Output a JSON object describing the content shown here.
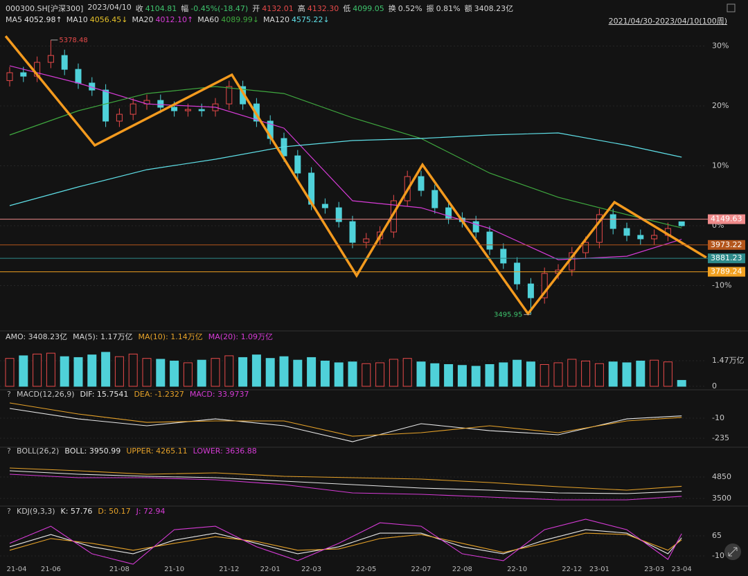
{
  "header": {
    "symbol": "000300.SH[沪深300]",
    "date": "2023/04/10",
    "help_icon": "?",
    "fields": [
      {
        "label": "收",
        "value": "4104.81",
        "color": "#3ec46d"
      },
      {
        "label": "幅",
        "value": "-0.45%(-18.47)",
        "color": "#3ec46d"
      },
      {
        "label": "开",
        "value": "4132.01",
        "color": "#e84a4a"
      },
      {
        "label": "高",
        "value": "4132.30",
        "color": "#e84a4a"
      },
      {
        "label": "低",
        "value": "4099.05",
        "color": "#3ec46d"
      },
      {
        "label": "换",
        "value": "0.52%",
        "color": "#d8d8d8"
      },
      {
        "label": "振",
        "value": "0.81%",
        "color": "#d8d8d8"
      },
      {
        "label": "额",
        "value": "3408.23亿",
        "color": "#d8d8d8"
      }
    ],
    "range": "2021/04/30-2023/04/10(100周)",
    "ma_legend": [
      {
        "name": "MA5",
        "value": "4052.98↑",
        "color": "#e8e8e8"
      },
      {
        "name": "MA10",
        "value": "4056.45↓",
        "color": "#e6c229"
      },
      {
        "name": "MA20",
        "value": "4012.10↑",
        "color": "#d63bd6"
      },
      {
        "name": "MA60",
        "value": "4089.99↓",
        "color": "#3fa83f"
      },
      {
        "name": "MA120",
        "value": "4575.22↓",
        "color": "#5fe0e8"
      }
    ]
  },
  "chart_data": [
    {
      "type": "candlestick",
      "categories": [
        "21-04",
        null,
        null,
        "21-06",
        null,
        null,
        null,
        null,
        "21-08",
        null,
        null,
        null,
        "21-10",
        null,
        null,
        null,
        "21-12",
        null,
        null,
        "22-01",
        null,
        null,
        "22-03",
        null,
        null,
        null,
        "22-05",
        null,
        null,
        null,
        "22-07",
        null,
        null,
        "22-08",
        null,
        null,
        null,
        "22-10",
        null,
        null,
        null,
        "22-12",
        null,
        "23-01",
        null,
        null,
        null,
        "23-03",
        null,
        "23-04"
      ],
      "open": [
        5100,
        5154,
        5130,
        5225,
        5272,
        5177,
        5083,
        5035,
        4822,
        4869,
        4940,
        4964,
        4917,
        4893,
        4902,
        4893,
        4940,
        5059,
        4940,
        4822,
        4703,
        4584,
        4466,
        4252,
        4228,
        4133,
        3991,
        4015,
        4062,
        4276,
        4442,
        4347,
        4228,
        4157,
        4133,
        4062,
        3944,
        3849,
        3706,
        3611,
        3778,
        3801,
        3920,
        3991,
        4181,
        4086,
        4039,
        4015,
        4039,
        4132
      ],
      "high": [
        5194,
        5194,
        5265,
        5378,
        5312,
        5217,
        5123,
        5075,
        4909,
        4980,
        5004,
        5004,
        4957,
        4942,
        4942,
        4980,
        5099,
        5099,
        4980,
        4862,
        4743,
        4624,
        4506,
        4292,
        4268,
        4173,
        4055,
        4102,
        4316,
        4482,
        4482,
        4387,
        4268,
        4197,
        4173,
        4102,
        3984,
        3889,
        3746,
        3818,
        3841,
        3960,
        4031,
        4221,
        4221,
        4126,
        4079,
        4079,
        4126,
        4132
      ],
      "low": [
        5060,
        5090,
        5090,
        5185,
        5137,
        5043,
        4995,
        4782,
        4782,
        4829,
        4900,
        4877,
        4853,
        4853,
        4853,
        4853,
        4900,
        4900,
        4782,
        4663,
        4544,
        4426,
        4212,
        4188,
        4093,
        3951,
        3951,
        3975,
        4022,
        4236,
        4307,
        4188,
        4117,
        4093,
        4022,
        3904,
        3809,
        3666,
        3496,
        3571,
        3738,
        3761,
        3880,
        3951,
        4046,
        3999,
        3975,
        3975,
        3999,
        4099
      ],
      "close": [
        5154,
        5130,
        5225,
        5272,
        5177,
        5083,
        5035,
        4822,
        4869,
        4940,
        4964,
        4917,
        4893,
        4902,
        4893,
        4940,
        5059,
        4940,
        4822,
        4703,
        4584,
        4466,
        4252,
        4228,
        4133,
        3991,
        4015,
        4062,
        4276,
        4442,
        4347,
        4228,
        4157,
        4133,
        4062,
        3944,
        3849,
        3706,
        3611,
        3778,
        3801,
        3920,
        3991,
        4181,
        4086,
        4039,
        4015,
        4039,
        4086,
        4105
      ],
      "up_color": "#e84a4a",
      "down_color": "#4fd1d9",
      "ylim": [
        3398,
        5510
      ],
      "yticks": [
        {
          "value": 5336.5,
          "label": "30%"
        },
        {
          "value": 4926,
          "label": "20%"
        },
        {
          "value": 4515.5,
          "label": "10%"
        },
        {
          "value": 4105,
          "label": "0%"
        },
        {
          "value": 3694.5,
          "label": "-10%"
        }
      ],
      "grid": true,
      "series": [
        {
          "color": "#d63bd6",
          "x": [
            0,
            5,
            10,
            15,
            20,
            25,
            30,
            35,
            40,
            45,
            49
          ],
          "values": [
            5201,
            5083,
            4940,
            4917,
            4774,
            4276,
            4228,
            4086,
            3872,
            3896,
            4012
          ]
        },
        {
          "color": "#3fa83f",
          "x": [
            0,
            5,
            10,
            15,
            20,
            25,
            30,
            35,
            40,
            45,
            49
          ],
          "values": [
            4727,
            4893,
            5011,
            5059,
            5011,
            4845,
            4703,
            4466,
            4300,
            4181,
            4090
          ]
        },
        {
          "color": "#5fe0e8",
          "x": [
            0,
            5,
            10,
            15,
            20,
            25,
            30,
            35,
            40,
            45,
            49
          ],
          "values": [
            4243,
            4371,
            4489,
            4561,
            4646,
            4689,
            4703,
            4727,
            4741,
            4656,
            4575
          ]
        }
      ],
      "trendline": {
        "color": "#f39a1e",
        "x": [
          -0.3,
          6.2,
          16.2,
          25.3,
          30.1,
          37.8,
          44.1,
          50.8
        ],
        "values": [
          5405,
          4656,
          5140,
          3763,
          4523,
          3502,
          4266,
          3887
        ]
      },
      "levels": [
        {
          "value": 4149.63,
          "color": "#ee8a8a"
        },
        {
          "value": 3973.22,
          "color": "#b4561c"
        },
        {
          "value": 3881.23,
          "color": "#2e8b8b"
        },
        {
          "value": 3789.24,
          "color": "#f0a020"
        }
      ],
      "annotations": [
        {
          "text": "5378.48",
          "color": "#e84a4a"
        },
        {
          "text": "3495.95",
          "color": "#3ec46d"
        }
      ]
    },
    {
      "type": "bar",
      "legend": [
        {
          "text": "AMO: 3408.23亿",
          "color": "#d8d8d8"
        },
        {
          "text": "MA(5): 1.17万亿",
          "color": "#d8d8d8"
        },
        {
          "text": "MA(10): 1.14万亿",
          "color": "#e6a229"
        },
        {
          "text": "MA(20): 1.09万亿",
          "color": "#d63bd6"
        }
      ],
      "values": [
        16000,
        17500,
        18500,
        19000,
        17000,
        16500,
        18000,
        19500,
        17000,
        18500,
        16000,
        15500,
        14500,
        13500,
        15000,
        16000,
        17500,
        16500,
        18000,
        16000,
        17000,
        15000,
        16500,
        14500,
        13500,
        14000,
        13000,
        13500,
        15500,
        16000,
        14000,
        13000,
        12500,
        12000,
        11500,
        12500,
        13500,
        15000,
        14000,
        12500,
        13500,
        15500,
        14500,
        13000,
        14000,
        13500,
        14500,
        15000,
        14000,
        3408.23
      ],
      "ylim": [
        0,
        25800
      ],
      "yticks": [
        {
          "value": 14700,
          "label": "1.47万亿"
        },
        0
      ]
    },
    {
      "type": "line",
      "title": "MACD(12,26,9)",
      "series": [
        {
          "name": "DIF: 15.7541",
          "color": "#e8e8e8",
          "x": [
            0,
            5,
            10,
            15,
            20,
            25,
            30,
            35,
            40,
            45,
            49
          ],
          "values": [
            99,
            -18,
            -95,
            -18,
            -95,
            -274,
            -72,
            -150,
            -196,
            -18,
            15.7541
          ]
        },
        {
          "name": "DEA: -1.2327",
          "color": "#e6a229",
          "x": [
            0,
            5,
            10,
            15,
            20,
            25,
            30,
            35,
            40,
            45,
            49
          ],
          "values": [
            161,
            37,
            -57,
            -41,
            -41,
            -212,
            -173,
            -95,
            -173,
            -41,
            -1.2327
          ]
        },
        {
          "name": "MACD: 33.9737",
          "color": "#d63bd6",
          "x": [],
          "values": []
        }
      ],
      "ylim": [
        -328,
        254
      ],
      "yticks": [
        -10,
        -235
      ]
    },
    {
      "type": "line",
      "title": "BOLL(26,2)",
      "series": [
        {
          "name": "BOLL: 3950.99",
          "color": "#e8e8e8",
          "x": [
            0,
            5,
            10,
            15,
            20,
            25,
            30,
            35,
            40,
            45,
            49
          ],
          "values": [
            5242,
            5024,
            4894,
            4807,
            4589,
            4372,
            4154,
            4024,
            3850,
            3806,
            3950.99
          ]
        },
        {
          "name": "UPPER: 4265.11",
          "color": "#e6a229",
          "x": [
            0,
            5,
            10,
            15,
            20,
            25,
            30,
            35,
            40,
            45,
            49
          ],
          "values": [
            5416,
            5242,
            5024,
            5111,
            4894,
            4807,
            4720,
            4502,
            4241,
            4024,
            4265.11
          ]
        },
        {
          "name": "LOWER: 3636.88",
          "color": "#d63bd6",
          "x": [
            0,
            5,
            10,
            15,
            20,
            25,
            30,
            35,
            40,
            45,
            49
          ],
          "values": [
            5024,
            4807,
            4807,
            4676,
            4372,
            3850,
            3763,
            3589,
            3415,
            3415,
            3636.88
          ]
        }
      ],
      "ylim": [
        3065,
        6330
      ],
      "yticks": [
        4850,
        3500
      ]
    },
    {
      "type": "line",
      "title": "KDJ(9,3,3)",
      "series": [
        {
          "name": "K: 57.76",
          "color": "#e8e8e8",
          "x": [
            0,
            3,
            6,
            9,
            12,
            15,
            18,
            21,
            24,
            27,
            30,
            33,
            36,
            39,
            42,
            45,
            48,
            49
          ],
          "values": [
            24,
            70,
            24,
            -2,
            49,
            75,
            37,
            -2,
            24,
            75,
            75,
            24,
            -2,
            49,
            88,
            75,
            -2,
            57.76
          ]
        },
        {
          "name": "D: 50.17",
          "color": "#e6a229",
          "x": [
            0,
            3,
            6,
            9,
            12,
            15,
            18,
            21,
            24,
            27,
            30,
            33,
            36,
            39,
            42,
            45,
            48,
            49
          ],
          "values": [
            11,
            55,
            37,
            11,
            37,
            62,
            44,
            11,
            16,
            55,
            70,
            37,
            3,
            37,
            75,
            70,
            11,
            50.17
          ]
        },
        {
          "name": "J: 72.94",
          "color": "#d63bd6",
          "x": [
            0,
            3,
            6,
            9,
            12,
            15,
            18,
            21,
            24,
            27,
            30,
            33,
            36,
            39,
            42,
            45,
            48,
            49
          ],
          "values": [
            37,
            101,
            -2,
            -41,
            88,
            101,
            24,
            -28,
            37,
            114,
            101,
            -2,
            -28,
            88,
            127,
            88,
            -23,
            72.94
          ]
        }
      ],
      "ylim": [
        -80,
        153
      ],
      "yticks": [
        65,
        -10
      ]
    }
  ]
}
